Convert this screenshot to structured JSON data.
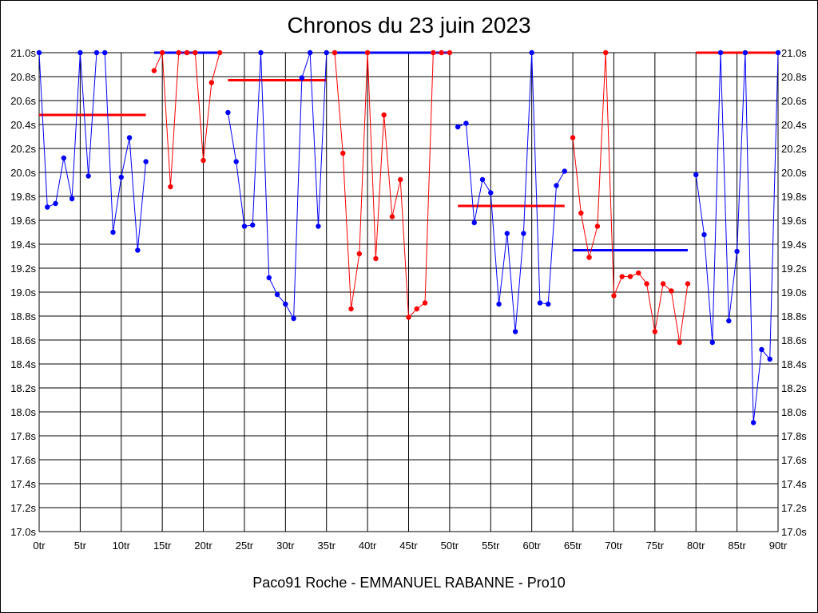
{
  "chart_data": {
    "type": "line",
    "title": "Chronos du 23 juin 2023",
    "footer": "Paco91 Roche - EMMANUEL RABANNE - Pro10",
    "xlabel": "",
    "ylabel": "",
    "xlim": [
      0,
      90
    ],
    "ylim": [
      17.0,
      21.0
    ],
    "grid": true,
    "y_ticks": [
      "17.0s",
      "17.2s",
      "17.4s",
      "17.6s",
      "17.8s",
      "18.0s",
      "18.2s",
      "18.4s",
      "18.6s",
      "18.8s",
      "19.0s",
      "19.2s",
      "19.4s",
      "19.6s",
      "19.8s",
      "20.0s",
      "20.2s",
      "20.4s",
      "20.6s",
      "20.8s",
      "21.0s"
    ],
    "x_ticks": [
      "0tr",
      "5tr",
      "10tr",
      "15tr",
      "20tr",
      "25tr",
      "30tr",
      "35tr",
      "40tr",
      "45tr",
      "50tr",
      "55tr",
      "60tr",
      "65tr",
      "70tr",
      "75tr",
      "80tr",
      "85tr",
      "90tr"
    ],
    "colors": {
      "blue": "#0000ff",
      "red": "#ff0000"
    },
    "series": [
      {
        "color": "blue",
        "points": [
          [
            0,
            21.0
          ],
          [
            1,
            19.71
          ],
          [
            2,
            19.74
          ],
          [
            3,
            20.12
          ],
          [
            4,
            19.78
          ],
          [
            5,
            21.0
          ],
          [
            6,
            19.97
          ],
          [
            7,
            21.0
          ],
          [
            8,
            21.0
          ],
          [
            9,
            19.5
          ],
          [
            10,
            19.96
          ],
          [
            11,
            20.29
          ],
          [
            12,
            19.35
          ],
          [
            13,
            20.09
          ]
        ]
      },
      {
        "color": "red",
        "points": [
          [
            14,
            20.85
          ],
          [
            15,
            21.0
          ],
          [
            16,
            19.88
          ],
          [
            17,
            21.0
          ],
          [
            18,
            21.0
          ],
          [
            19,
            21.0
          ],
          [
            20,
            20.1
          ],
          [
            21,
            20.75
          ],
          [
            22,
            21.0
          ]
        ]
      },
      {
        "color": "blue",
        "points": [
          [
            23,
            20.5
          ],
          [
            24,
            20.09
          ],
          [
            25,
            19.55
          ],
          [
            26,
            19.56
          ],
          [
            27,
            21.0
          ],
          [
            28,
            19.12
          ],
          [
            29,
            18.98
          ],
          [
            30,
            18.9
          ],
          [
            31,
            18.78
          ],
          [
            32,
            20.79
          ],
          [
            33,
            21.0
          ],
          [
            34,
            19.55
          ],
          [
            35,
            21.0
          ]
        ]
      },
      {
        "color": "red",
        "points": [
          [
            36,
            21.0
          ],
          [
            37,
            20.16
          ],
          [
            38,
            18.86
          ],
          [
            39,
            19.32
          ],
          [
            40,
            21.0
          ],
          [
            41,
            19.28
          ],
          [
            42,
            20.48
          ],
          [
            43,
            19.63
          ],
          [
            44,
            19.94
          ],
          [
            45,
            18.79
          ],
          [
            46,
            18.86
          ],
          [
            47,
            18.91
          ],
          [
            48,
            21.0
          ],
          [
            49,
            21.0
          ],
          [
            50,
            21.0
          ]
        ]
      },
      {
        "color": "blue",
        "points": [
          [
            51,
            20.38
          ],
          [
            52,
            20.41
          ],
          [
            53,
            19.58
          ],
          [
            54,
            19.94
          ],
          [
            55,
            19.83
          ],
          [
            56,
            18.9
          ],
          [
            57,
            19.49
          ],
          [
            58,
            18.67
          ],
          [
            59,
            19.49
          ],
          [
            60,
            21.0
          ],
          [
            61,
            18.91
          ],
          [
            62,
            18.9
          ],
          [
            63,
            19.89
          ],
          [
            64,
            20.01
          ]
        ]
      },
      {
        "color": "red",
        "points": [
          [
            65,
            20.29
          ],
          [
            66,
            19.66
          ],
          [
            67,
            19.29
          ],
          [
            68,
            19.55
          ],
          [
            69,
            21.0
          ],
          [
            70,
            18.97
          ],
          [
            71,
            19.13
          ],
          [
            72,
            19.13
          ],
          [
            73,
            19.16
          ],
          [
            74,
            19.07
          ],
          [
            75,
            18.67
          ],
          [
            76,
            19.07
          ],
          [
            77,
            19.01
          ],
          [
            78,
            18.58
          ],
          [
            79,
            19.07
          ]
        ]
      },
      {
        "color": "blue",
        "points": [
          [
            80,
            19.98
          ],
          [
            81,
            19.48
          ],
          [
            82,
            18.58
          ],
          [
            83,
            21.0
          ],
          [
            84,
            18.76
          ],
          [
            85,
            19.34
          ],
          [
            86,
            21.0
          ],
          [
            87,
            17.91
          ],
          [
            88,
            18.52
          ],
          [
            89,
            18.44
          ],
          [
            90,
            21.0
          ]
        ]
      }
    ],
    "averages": [
      {
        "color": "red",
        "x": [
          0,
          13
        ],
        "y": 20.48
      },
      {
        "color": "blue",
        "x": [
          14,
          22
        ],
        "y": 21.0
      },
      {
        "color": "red",
        "x": [
          23,
          35
        ],
        "y": 20.77
      },
      {
        "color": "blue",
        "x": [
          36,
          50
        ],
        "y": 21.0
      },
      {
        "color": "red",
        "x": [
          51,
          64
        ],
        "y": 19.72
      },
      {
        "color": "blue",
        "x": [
          65,
          79
        ],
        "y": 19.35
      },
      {
        "color": "red",
        "x": [
          80,
          90
        ],
        "y": 21.0
      }
    ]
  }
}
